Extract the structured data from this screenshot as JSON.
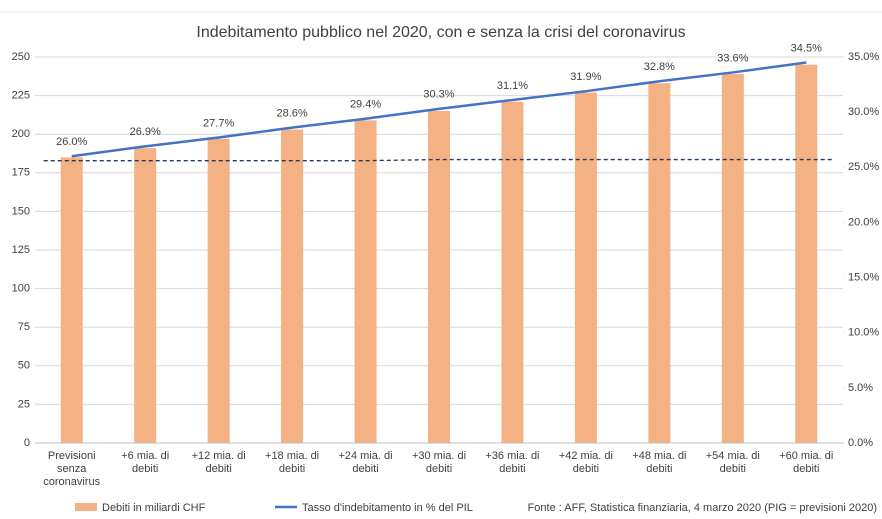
{
  "chart_data": {
    "type": "bar",
    "title": "Indebitamento pubblico nel 2020, con e senza la crisi del coronavirus",
    "categories": [
      "Previsioni\nsenza\ncoronavirus",
      "+6 mia. di\ndebiti",
      "+12 mia. di\ndebiti",
      "+18 mia. di\ndebiti",
      "+24 mia. di\ndebiti",
      "+30 mia. di\ndebiti",
      "+36 mia. di\ndebiti",
      "+42 mia. di\ndebiti",
      "+48 mia. di\ndebiti",
      "+54 mia. di\ndebiti",
      "+60 mia. di\ndebiti"
    ],
    "series": [
      {
        "name": "Debiti in miliardi CHF",
        "color": "#f4b183",
        "type": "bar",
        "values": [
          185,
          191,
          197,
          203,
          209,
          215,
          221,
          227,
          233,
          239,
          245
        ]
      },
      {
        "name": "Tasso d'indebitamento in % del PIL",
        "color": "#4472c4",
        "type": "line",
        "axis": "y2",
        "values": [
          26.0,
          26.9,
          27.7,
          28.6,
          29.4,
          30.3,
          31.1,
          31.9,
          32.8,
          33.6,
          34.5
        ],
        "value_labels": [
          "26.0%",
          "26.9%",
          "27.7%",
          "28.6%",
          "29.4%",
          "30.3%",
          "31.1%",
          "31.9%",
          "32.8%",
          "33.6%",
          "34.5%"
        ]
      },
      {
        "color": "#203864",
        "type": "line",
        "dashed": true,
        "axis": "y2",
        "values": [
          25.6,
          25.6,
          25.6,
          25.6,
          25.6,
          25.7,
          25.7,
          25.7,
          25.7,
          25.7,
          25.7
        ]
      }
    ],
    "ylim": [
      0,
      250
    ],
    "yticks": [
      0,
      25,
      50,
      75,
      100,
      125,
      150,
      175,
      200,
      225,
      250
    ],
    "y2lim": [
      0,
      35
    ],
    "y2ticks": [
      {
        "value": 0,
        "label": "0.0%"
      },
      {
        "value": 5,
        "label": "5.0%"
      },
      {
        "value": 10,
        "label": "10.0%"
      },
      {
        "value": 15,
        "label": "15.0%"
      },
      {
        "value": 20,
        "label": "20.0%"
      },
      {
        "value": 25,
        "label": "25.0%"
      },
      {
        "value": 30,
        "label": "30.0%"
      },
      {
        "value": 35,
        "label": "35.0%"
      }
    ],
    "grid": true,
    "legend": "bottom-left",
    "source": "Fonte : AFF, Statistica finanziaria, 4 marzo 2020 (PIG = previsioni 2020)"
  }
}
